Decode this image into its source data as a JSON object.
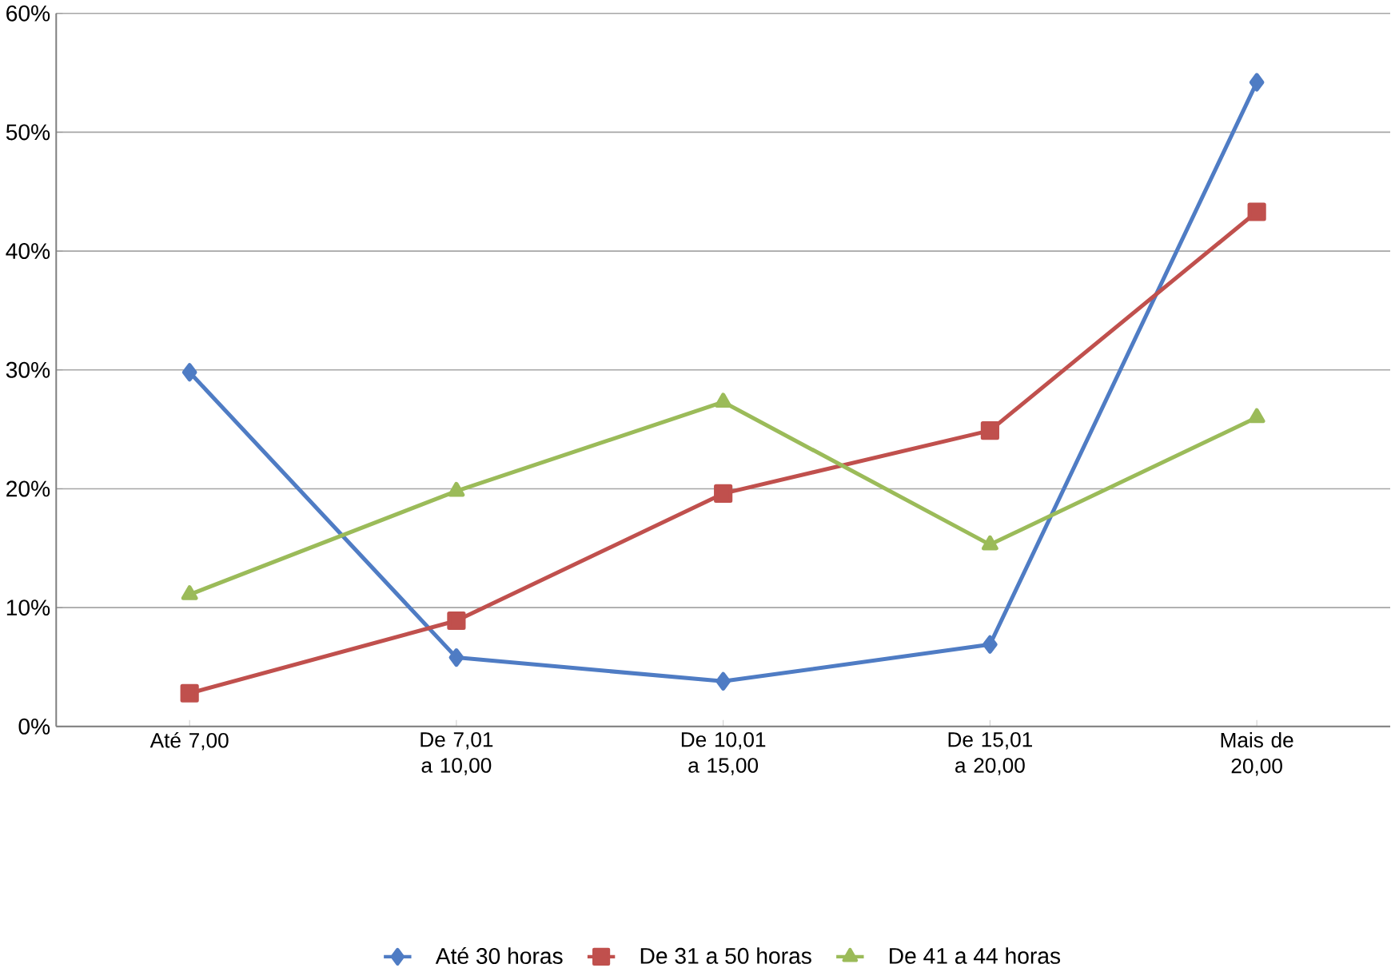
{
  "chart_data": {
    "type": "line",
    "categories": [
      "Até 7,00",
      "De 7,01 a 10,00",
      "De 10,01 a 15,00",
      "De 15,01 a 20,00",
      "Mais de 20,00"
    ],
    "series": [
      {
        "name": "Até 30 horas",
        "color": "#4f7cc4",
        "marker": "diamond",
        "values": [
          29.8,
          5.8,
          3.8,
          6.9,
          54.2
        ]
      },
      {
        "name": "De 31 a 50 horas",
        "color": "#c0504d",
        "marker": "square",
        "values": [
          2.8,
          8.9,
          19.6,
          24.9,
          43.3
        ]
      },
      {
        "name": "De 41 a 44 horas",
        "color": "#9bbb59",
        "marker": "triangle",
        "values": [
          11.1,
          19.8,
          27.3,
          15.3,
          26.0
        ]
      }
    ],
    "ylim": [
      0,
      60
    ],
    "yticks": [
      {
        "value": 0,
        "label": "0%"
      },
      {
        "value": 10,
        "label": "10%"
      },
      {
        "value": 20,
        "label": "20%"
      },
      {
        "value": 30,
        "label": "30%"
      },
      {
        "value": 40,
        "label": "40%"
      },
      {
        "value": 50,
        "label": "50%"
      },
      {
        "value": 60,
        "label": "60%"
      }
    ],
    "grid": "y",
    "legend": "bottom",
    "line_style": "solid"
  }
}
